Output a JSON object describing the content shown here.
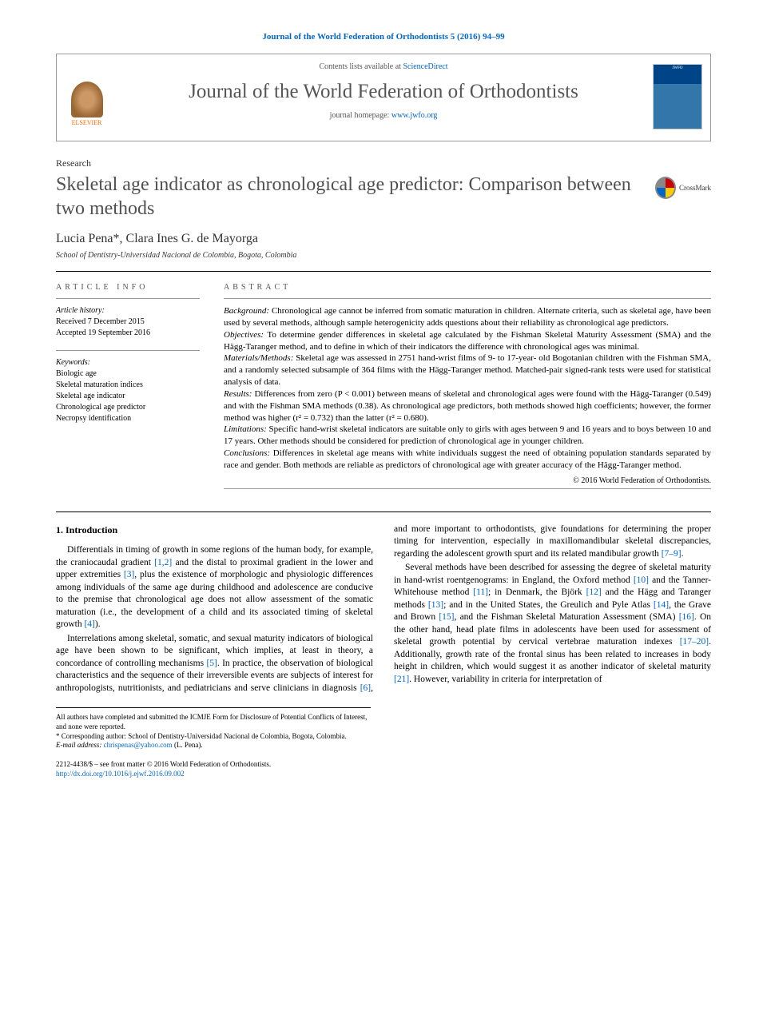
{
  "journal_ref": "Journal of the World Federation of Orthodontists 5 (2016) 94–99",
  "header": {
    "contents_prefix": "Contents lists available at ",
    "contents_link": "ScienceDirect",
    "journal_title": "Journal of the World Federation of Orthodontists",
    "homepage_prefix": "journal homepage: ",
    "homepage_link": "www.jwfo.org",
    "publisher": "ELSEVIER",
    "cover_label": "JWFO"
  },
  "article": {
    "section": "Research",
    "title": "Skeletal age indicator as chronological age predictor: Comparison between two methods",
    "crossmark": "CrossMark",
    "authors": "Lucia Pena*, Clara Ines G. de Mayorga",
    "affiliation": "School of Dentistry-Universidad Nacional de Colombia, Bogota, Colombia"
  },
  "info": {
    "heading": "ARTICLE INFO",
    "history_title": "Article history:",
    "received": "Received 7 December 2015",
    "accepted": "Accepted 19 September 2016",
    "keywords_title": "Keywords:",
    "keywords": [
      "Biologic age",
      "Skeletal maturation indices",
      "Skeletal age indicator",
      "Chronological age predictor",
      "Necropsy identification"
    ]
  },
  "abstract": {
    "heading": "ABSTRACT",
    "background_label": "Background:",
    "background": " Chronological age cannot be inferred from somatic maturation in children. Alternate criteria, such as skeletal age, have been used by several methods, although sample heterogenicity adds questions about their reliability as chronological age predictors.",
    "objectives_label": "Objectives:",
    "objectives": " To determine gender differences in skeletal age calculated by the Fishman Skeletal Maturity Assessment (SMA) and the Hägg-Taranger method, and to define in which of their indicators the difference with chronological ages was minimal.",
    "methods_label": "Materials/Methods:",
    "methods": " Skeletal age was assessed in 2751 hand-wrist films of 9- to 17-year- old Bogotanian children with the Fishman SMA, and a randomly selected subsample of 364 films with the Hägg-Taranger method. Matched-pair signed-rank tests were used for statistical analysis of data.",
    "results_label": "Results:",
    "results": " Differences from zero (P < 0.001) between means of skeletal and chronological ages were found with the Hägg-Taranger (0.549) and with the Fishman SMA methods (0.38). As chronological age predictors, both methods showed high coefficients; however, the former method was higher (r² = 0.732) than the latter (r² = 0.680).",
    "limitations_label": "Limitations:",
    "limitations": " Specific hand-wrist skeletal indicators are suitable only to girls with ages between 9 and 16 years and to boys between 10 and 17 years. Other methods should be considered for prediction of chronological age in younger children.",
    "conclusions_label": "Conclusions:",
    "conclusions": " Differences in skeletal age means with white individuals suggest the need of obtaining population standards separated by race and gender. Both methods are reliable as predictors of chronological age with greater accuracy of the Hägg-Taranger method.",
    "copyright": "© 2016 World Federation of Orthodontists."
  },
  "body": {
    "heading": "1. Introduction",
    "p1a": "Differentials in timing of growth in some regions of the human body, for example, the craniocaudal gradient ",
    "p1_ref1": "[1,2]",
    "p1b": " and the distal to proximal gradient in the lower and upper extremities ",
    "p1_ref2": "[3]",
    "p1c": ", plus the existence of morphologic and physiologic differences among individuals of the same age during childhood and adolescence are conducive to the premise that chronological age does not allow assessment of the somatic maturation (i.e., the development of a child and its associated timing of skeletal growth ",
    "p1_ref3": "[4]",
    "p1d": ").",
    "p2a": "Interrelations among skeletal, somatic, and sexual maturity indicators of biological age have been shown to be significant, which implies, at least in theory, a concordance of controlling mechanisms ",
    "p2_ref1": "[5]",
    "p2b": ". In practice, the observation of biological characteristics and the sequence of their irreversible events are subjects of interest for anthropologists, nutritionists, and pediatricians and serve clinicians in diagnosis ",
    "p2_ref2": "[6]",
    "p2c": ", and more important to orthodontists, give foundations for determining the proper timing for intervention, especially in maxillomandibular skeletal discrepancies, regarding the adolescent growth spurt and its related mandibular growth ",
    "p2_ref3": "[7–9]",
    "p2d": ".",
    "p3a": "Several methods have been described for assessing the degree of skeletal maturity in hand-wrist roentgenograms: in England, the Oxford method ",
    "p3_ref1": "[10]",
    "p3b": " and the Tanner- Whitehouse method ",
    "p3_ref2": "[11]",
    "p3c": "; in Denmark, the Björk ",
    "p3_ref3": "[12]",
    "p3d": " and the Hägg and Taranger methods ",
    "p3_ref4": "[13]",
    "p3e": "; and in the United States, the Greulich and Pyle Atlas ",
    "p3_ref5": "[14]",
    "p3f": ", the Grave and Brown ",
    "p3_ref6": "[15]",
    "p3g": ", and the Fishman Skeletal Maturation Assessment (SMA) ",
    "p3_ref7": "[16]",
    "p3h": ". On the other hand, head plate films in adolescents have been used for assessment of skeletal growth potential by cervical vertebrae maturation indexes ",
    "p3_ref8": "[17–20]",
    "p3i": ". Additionally, growth rate of the frontal sinus has been related to increases in body height in children, which would suggest it as another indicator of skeletal maturity ",
    "p3_ref9": "[21]",
    "p3j": ". However, variability in criteria for interpretation of"
  },
  "footnotes": {
    "disclosure": "All authors have completed and submitted the ICMJE Form for Disclosure of Potential Conflicts of Interest, and none were reported.",
    "corresponding": "* Corresponding author: School of Dentistry-Universidad Nacional de Colombia, Bogota, Colombia.",
    "email_label": "E-mail address: ",
    "email": "chrispenas@yahoo.com",
    "email_suffix": " (L. Pena)."
  },
  "footer": {
    "issn": "2212-4438/$ – see front matter © 2016 World Federation of Orthodontists.",
    "doi": "http://dx.doi.org/10.1016/j.ejwf.2016.09.002"
  },
  "colors": {
    "link": "#0066cc",
    "title_gray": "#505050",
    "accent_orange": "#ff6600"
  }
}
